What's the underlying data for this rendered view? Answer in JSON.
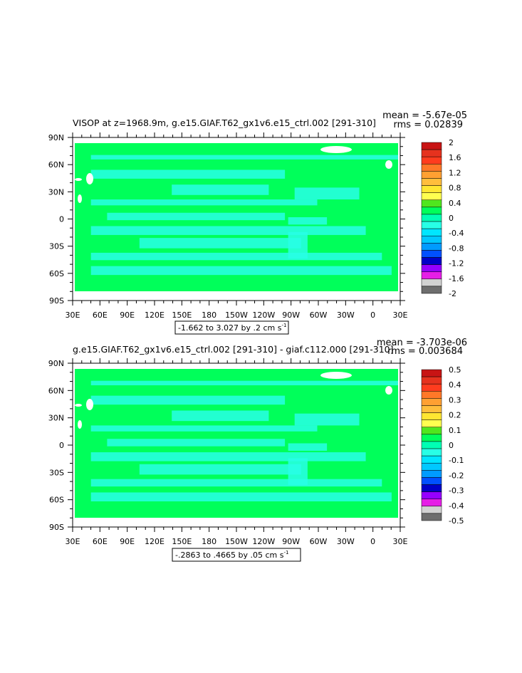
{
  "chart_data": [
    {
      "type": "heatmap",
      "title": "VISOP at z=1968.9m, g.e15.GIAF.T62_gx1v6.e15_ctrl.002 [291-310]",
      "stats": {
        "mean": "mean = -5.67e-05",
        "rms": "rms = 0.02839"
      },
      "x_ticks": [
        "30E",
        "60E",
        "90E",
        "120E",
        "150E",
        "180",
        "150W",
        "120W",
        "90W",
        "60W",
        "30W",
        "0",
        "30E"
      ],
      "y_ticks": [
        "90N",
        "60N",
        "30N",
        "0",
        "30S",
        "60S",
        "90S"
      ],
      "range_label": "-1.662 to 3.027 by .2 cm s",
      "range_label_sup": "-1",
      "colorbar": {
        "labels": [
          "2",
          "1.6",
          "1.2",
          "0.8",
          "0.4",
          "0",
          "-0.4",
          "-0.8",
          "-1.2",
          "-1.6",
          "-2"
        ],
        "colors": [
          "#c81414",
          "#e6321e",
          "#ff3c1e",
          "#ff7828",
          "#ffa032",
          "#ffbe3c",
          "#ffe632",
          "#ffff50",
          "#50e61e",
          "#00ff5a",
          "#00ffb4",
          "#28ffe6",
          "#00e6ff",
          "#00c8ff",
          "#009bff",
          "#0050ff",
          "#0000c8",
          "#9600ff",
          "#e61ee6",
          "#d2d2d2",
          "#6e6e6e"
        ]
      }
    },
    {
      "type": "heatmap",
      "title": "g.e15.GIAF.T62_gx1v6.e15_ctrl.002 [291-310] - giaf.c112.000 [291-310]",
      "stats": {
        "mean": "mean = -3.703e-06",
        "rms": "rms = 0.003684"
      },
      "x_ticks": [
        "30E",
        "60E",
        "90E",
        "120E",
        "150E",
        "180",
        "150W",
        "120W",
        "90W",
        "60W",
        "30W",
        "0",
        "30E"
      ],
      "y_ticks": [
        "90N",
        "60N",
        "30N",
        "0",
        "30S",
        "60S",
        "90S"
      ],
      "range_label": "-.2863 to .4665 by .05 cm s",
      "range_label_sup": "-1",
      "colorbar": {
        "labels": [
          "0.5",
          "0.4",
          "0.3",
          "0.2",
          "0.1",
          "0",
          "-0.1",
          "-0.2",
          "-0.3",
          "-0.4",
          "-0.5"
        ],
        "colors": [
          "#c81414",
          "#e6321e",
          "#ff3c1e",
          "#ff7828",
          "#ffa032",
          "#ffbe3c",
          "#ffe632",
          "#ffff50",
          "#50e61e",
          "#00ff5a",
          "#00ffb4",
          "#28ffe6",
          "#00e6ff",
          "#00c8ff",
          "#009bff",
          "#0050ff",
          "#0000c8",
          "#9600ff",
          "#e61ee6",
          "#d2d2d2",
          "#6e6e6e"
        ]
      }
    }
  ]
}
